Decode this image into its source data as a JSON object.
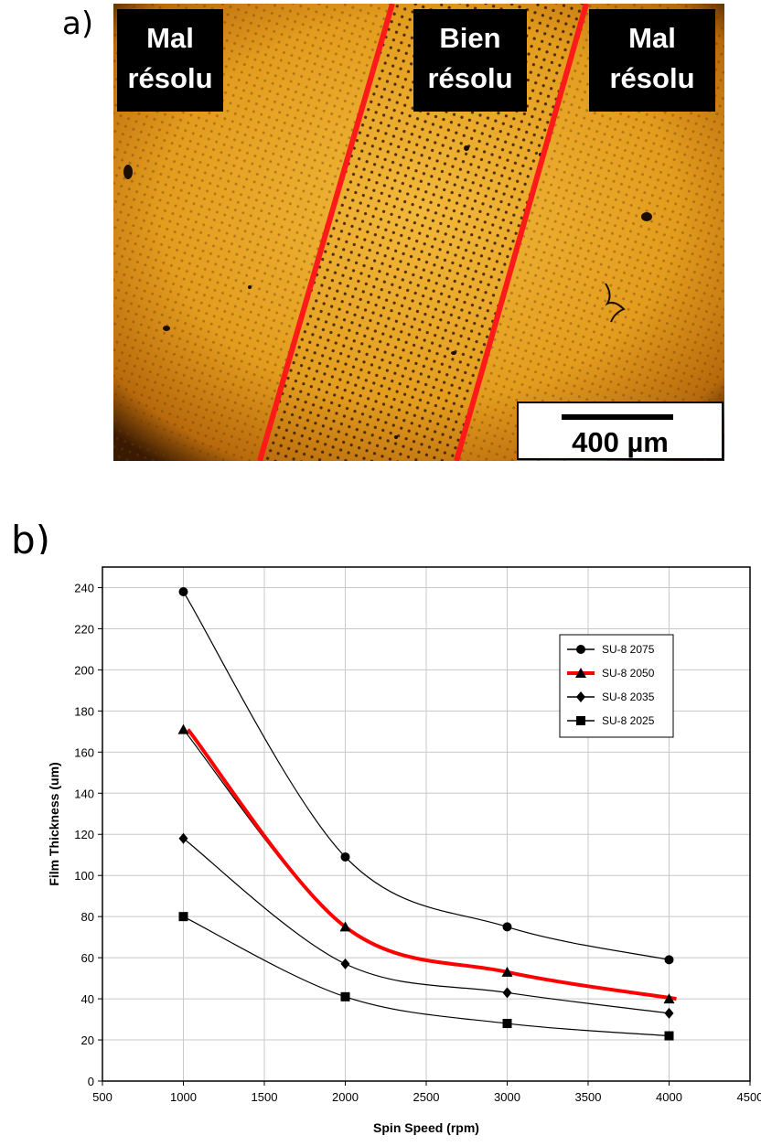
{
  "panel_a": {
    "label": "a)",
    "regions": [
      {
        "lines": [
          "Mal",
          "résolu"
        ]
      },
      {
        "lines": [
          "Bien",
          "résolu"
        ]
      },
      {
        "lines": [
          "Mal",
          "résolu"
        ]
      }
    ],
    "scale_bar_label": "400 µm",
    "colors": {
      "background": "#e39d1e",
      "boundary": "#ff1a1a",
      "label_box": "#000000",
      "dot": "#6a3a05"
    }
  },
  "panel_b": {
    "label": "b)"
  },
  "chart_data": {
    "type": "line",
    "xlabel": "Spin Speed (rpm)",
    "ylabel": "Film Thickness (um)",
    "xlim": [
      500,
      4500
    ],
    "ylim": [
      0,
      250
    ],
    "xticks": [
      500,
      1000,
      1500,
      2000,
      2500,
      3000,
      3500,
      4000,
      4500
    ],
    "yticks": [
      0,
      20,
      40,
      60,
      80,
      100,
      120,
      140,
      160,
      180,
      200,
      220,
      240
    ],
    "grid": true,
    "legend_position": "top-right",
    "x": [
      1000,
      2000,
      3000,
      4000
    ],
    "series": [
      {
        "name": "SU-8 2075",
        "marker": "circle",
        "color": "#000000",
        "values": [
          238,
          109,
          75,
          59
        ]
      },
      {
        "name": "SU-8 2050",
        "marker": "triangle",
        "color": "#ff0000",
        "values": [
          171,
          75,
          53,
          40
        ]
      },
      {
        "name": "SU-8 2035",
        "marker": "diamond",
        "color": "#000000",
        "values": [
          118,
          57,
          43,
          33
        ]
      },
      {
        "name": "SU-8 2025",
        "marker": "square",
        "color": "#000000",
        "values": [
          80,
          41,
          28,
          22
        ]
      }
    ]
  }
}
